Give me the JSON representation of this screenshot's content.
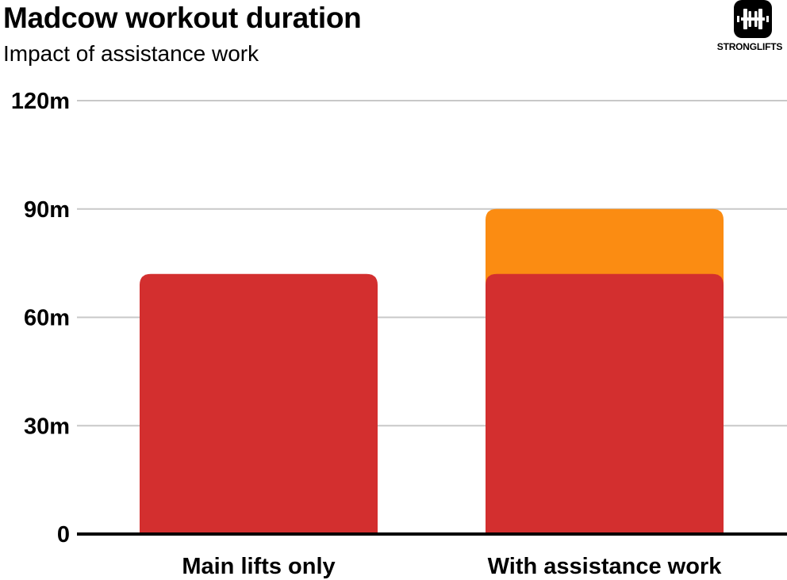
{
  "header": {
    "title": "Madcow workout duration",
    "subtitle": "Impact of assistance work"
  },
  "logo": {
    "text": "STRONGLIFTS",
    "icon": "barbell-icon"
  },
  "colors": {
    "main_lifts": "#d32f2f",
    "assistance": "#fb8c12",
    "grid": "#c8c8c8",
    "axis": "#000000"
  },
  "chart_data": {
    "type": "bar",
    "stacked": true,
    "title": "Madcow workout duration",
    "subtitle": "Impact of assistance work",
    "xlabel": "",
    "ylabel": "",
    "categories": [
      "Main lifts only",
      "With assistance work"
    ],
    "series": [
      {
        "values": [
          72,
          72
        ],
        "color": "#d32f2f"
      },
      {
        "values": [
          0,
          18
        ],
        "color": "#fb8c12"
      }
    ],
    "ylim": [
      0,
      120
    ],
    "yticks": [
      0,
      30,
      60,
      90,
      120
    ],
    "ytick_labels": [
      "0",
      "30m",
      "60m",
      "90m",
      "120m"
    ],
    "grid": true,
    "legend": "none"
  }
}
